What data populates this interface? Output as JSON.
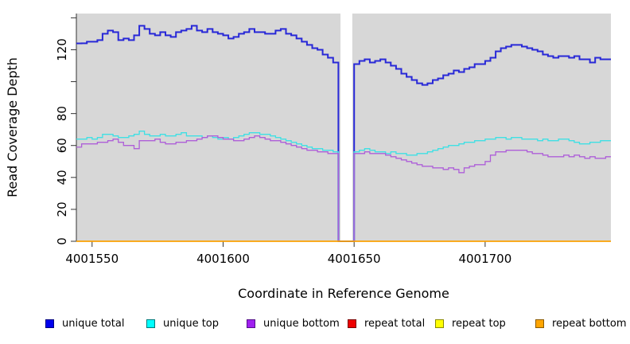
{
  "chart_data": {
    "type": "line",
    "step": true,
    "title": "",
    "xlabel": "Coordinate in Reference Genome",
    "ylabel": "Read Coverage Depth",
    "x_range": [
      4001544,
      4001748
    ],
    "y_range": [
      0,
      143
    ],
    "grid": "off",
    "legend_position": "bottom",
    "plot_background": "#D7D7D7",
    "gap_region": {
      "start": 4001644.8,
      "end": 4001649.3,
      "color": "#FFFFFF"
    },
    "x_ticks": {
      "values": [
        4001550,
        4001600,
        4001650,
        4001700
      ],
      "labels": [
        "4001550",
        "4001600",
        "4001650",
        "4001700"
      ]
    },
    "y_ticks": {
      "values": [
        0,
        20,
        40,
        60,
        80,
        100,
        120,
        140
      ],
      "labels": [
        "0",
        "20",
        "40",
        "60",
        "80",
        "",
        "120",
        ""
      ]
    },
    "x_start": 4001544,
    "x_step": 2,
    "series": [
      {
        "name": "unique total",
        "line_color": "#2828D7",
        "line_width": 2,
        "swatch_fill": "#0000EE",
        "swatch_border": "#000080",
        "values": [
          124,
          124,
          125,
          125,
          126,
          130,
          132,
          131,
          126,
          127,
          126,
          129,
          135,
          133,
          130,
          129,
          131,
          129,
          128,
          131,
          132,
          133,
          135,
          132,
          131,
          133,
          131,
          130,
          129,
          127,
          128,
          130,
          131,
          133,
          131,
          131,
          130,
          130,
          132,
          133,
          130,
          129,
          127,
          125,
          123,
          121,
          120,
          117,
          115,
          112,
          0,
          0,
          0,
          111,
          113,
          114,
          112,
          113,
          114,
          112,
          110,
          108,
          105,
          103,
          101,
          99,
          98,
          99,
          101,
          102,
          104,
          105,
          107,
          106,
          108,
          109,
          111,
          111,
          113,
          115,
          119,
          121,
          122,
          123,
          123,
          122,
          121,
          120,
          119,
          117,
          116,
          115,
          116,
          116,
          115,
          116,
          114,
          114,
          112,
          115,
          114,
          114
        ]
      },
      {
        "name": "unique top",
        "line_color": "#3FE0E4",
        "line_width": 1.3,
        "swatch_fill": "#00FFFF",
        "swatch_border": "#007A7A",
        "values": [
          64,
          64,
          65,
          64,
          65,
          67,
          67,
          66,
          65,
          65,
          66,
          67,
          69,
          67,
          66,
          66,
          67,
          66,
          66,
          67,
          68,
          66,
          66,
          66,
          65,
          66,
          65,
          64,
          65,
          64,
          65,
          66,
          67,
          68,
          68,
          67,
          67,
          66,
          65,
          64,
          63,
          62,
          61,
          60,
          59,
          58,
          58,
          57,
          57,
          56,
          0,
          0,
          0,
          56,
          57,
          58,
          57,
          56,
          56,
          55,
          56,
          55,
          55,
          54,
          54,
          55,
          55,
          56,
          57,
          58,
          59,
          60,
          60,
          61,
          62,
          62,
          63,
          63,
          64,
          64,
          65,
          65,
          64,
          65,
          65,
          64,
          64,
          64,
          63,
          64,
          63,
          63,
          64,
          64,
          63,
          62,
          61,
          61,
          62,
          62,
          63,
          63
        ]
      },
      {
        "name": "unique bottom",
        "line_color": "#AE5FD8",
        "line_width": 1.3,
        "swatch_fill": "#A020F0",
        "swatch_border": "#55108A",
        "values": [
          59,
          61,
          61,
          61,
          62,
          62,
          63,
          64,
          62,
          60,
          60,
          58,
          63,
          63,
          63,
          64,
          62,
          61,
          61,
          62,
          62,
          63,
          63,
          64,
          65,
          66,
          66,
          65,
          64,
          64,
          63,
          63,
          64,
          65,
          66,
          65,
          64,
          63,
          63,
          62,
          61,
          60,
          59,
          58,
          57,
          57,
          56,
          56,
          55,
          55,
          0,
          0,
          0,
          55,
          55,
          56,
          55,
          55,
          55,
          54,
          53,
          52,
          51,
          50,
          49,
          48,
          47,
          47,
          46,
          46,
          45,
          46,
          45,
          43,
          46,
          47,
          48,
          48,
          50,
          54,
          56,
          56,
          57,
          57,
          57,
          57,
          56,
          55,
          55,
          54,
          53,
          53,
          53,
          54,
          53,
          54,
          53,
          52,
          53,
          52,
          52,
          53
        ]
      },
      {
        "name": "repeat total",
        "line_color": "#DD0000",
        "line_width": 1.3,
        "swatch_fill": "#EE0000",
        "swatch_border": "#7A0000",
        "constant": 0
      },
      {
        "name": "repeat top",
        "line_color": "#E8E800",
        "line_width": 1.3,
        "swatch_fill": "#FFFF00",
        "swatch_border": "#8A8A00",
        "constant": 0
      },
      {
        "name": "repeat bottom",
        "line_color": "#FFA500",
        "line_width": 1.6,
        "swatch_fill": "#FFA500",
        "swatch_border": "#8A5A00",
        "constant": 0
      }
    ]
  }
}
